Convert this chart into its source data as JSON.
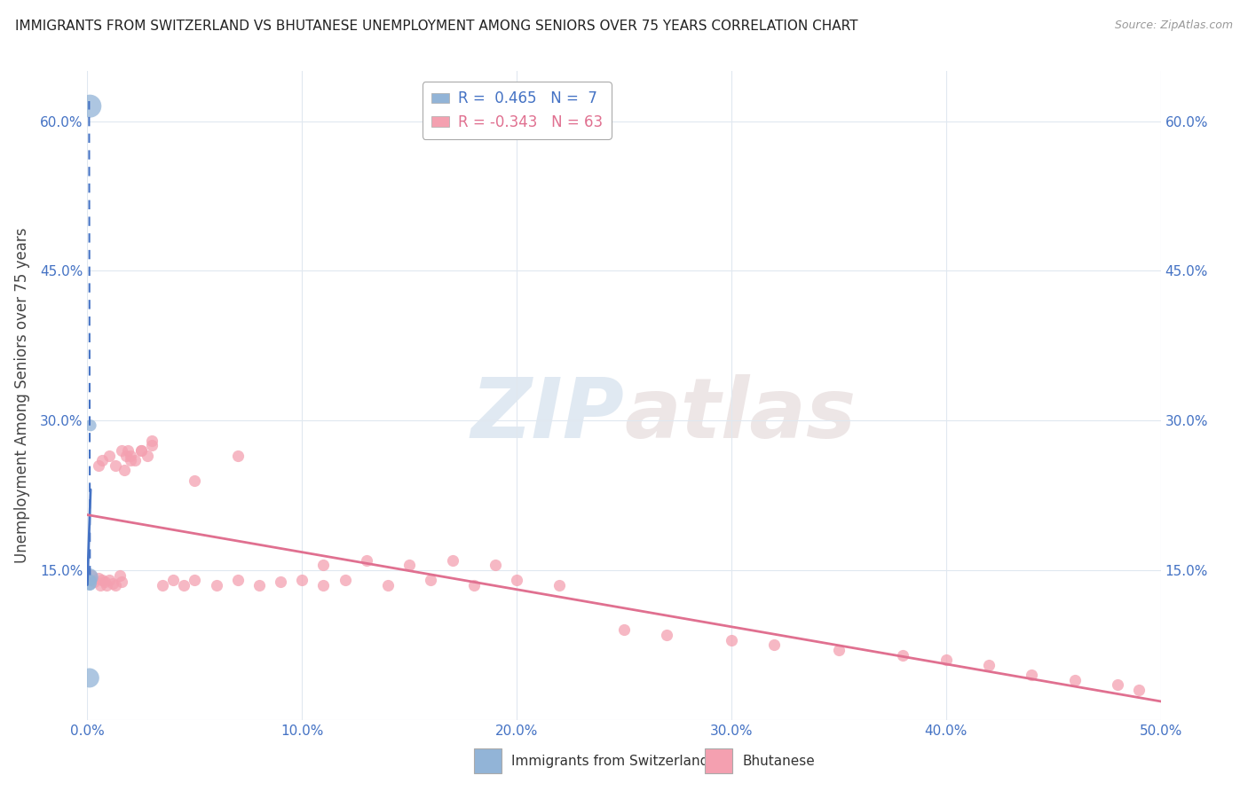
{
  "title": "IMMIGRANTS FROM SWITZERLAND VS BHUTANESE UNEMPLOYMENT AMONG SENIORS OVER 75 YEARS CORRELATION CHART",
  "source": "Source: ZipAtlas.com",
  "xlabel_left": "Immigrants from Switzerland",
  "xlabel_right": "Bhutanese",
  "ylabel": "Unemployment Among Seniors over 75 years",
  "xlim": [
    0.0,
    0.5
  ],
  "ylim": [
    0.0,
    0.65
  ],
  "xtick_vals": [
    0.0,
    0.1,
    0.2,
    0.3,
    0.4,
    0.5
  ],
  "ytick_vals": [
    0.0,
    0.15,
    0.3,
    0.45,
    0.6
  ],
  "xtick_labels": [
    "0.0%",
    "10.0%",
    "20.0%",
    "30.0%",
    "40.0%",
    "50.0%"
  ],
  "ytick_labels": [
    "",
    "15.0%",
    "30.0%",
    "45.0%",
    "60.0%"
  ],
  "legend_1_r": "0.465",
  "legend_1_n": "7",
  "legend_2_r": "-0.343",
  "legend_2_n": "63",
  "color_swiss": "#92b4d7",
  "color_bhutan": "#f4a0b0",
  "color_swiss_line": "#4472c4",
  "color_bhutan_line": "#e07090",
  "color_tick": "#4472c4",
  "color_grid": "#e0e8f0",
  "swiss_x": [
    0.0012,
    0.0015,
    0.001,
    0.001,
    0.0018,
    0.0013,
    0.001
  ],
  "swiss_y": [
    0.615,
    0.295,
    0.143,
    0.137,
    0.14,
    0.135,
    0.042
  ],
  "swiss_sizes": [
    350,
    90,
    200,
    140,
    80,
    80,
    250
  ],
  "bhutan_x": [
    0.002,
    0.003,
    0.005,
    0.006,
    0.007,
    0.008,
    0.009,
    0.01,
    0.012,
    0.013,
    0.015,
    0.016,
    0.017,
    0.018,
    0.019,
    0.02,
    0.022,
    0.025,
    0.028,
    0.03,
    0.005,
    0.007,
    0.01,
    0.013,
    0.016,
    0.02,
    0.025,
    0.03,
    0.035,
    0.04,
    0.045,
    0.05,
    0.06,
    0.07,
    0.08,
    0.09,
    0.1,
    0.11,
    0.12,
    0.14,
    0.16,
    0.18,
    0.2,
    0.22,
    0.05,
    0.07,
    0.11,
    0.13,
    0.15,
    0.17,
    0.19,
    0.25,
    0.27,
    0.3,
    0.32,
    0.35,
    0.38,
    0.4,
    0.42,
    0.44,
    0.46,
    0.48,
    0.49
  ],
  "bhutan_y": [
    0.145,
    0.138,
    0.142,
    0.135,
    0.14,
    0.138,
    0.135,
    0.14,
    0.137,
    0.135,
    0.145,
    0.138,
    0.25,
    0.265,
    0.27,
    0.265,
    0.26,
    0.27,
    0.265,
    0.275,
    0.255,
    0.26,
    0.265,
    0.255,
    0.27,
    0.26,
    0.27,
    0.28,
    0.135,
    0.14,
    0.135,
    0.14,
    0.135,
    0.14,
    0.135,
    0.138,
    0.14,
    0.135,
    0.14,
    0.135,
    0.14,
    0.135,
    0.14,
    0.135,
    0.24,
    0.265,
    0.155,
    0.16,
    0.155,
    0.16,
    0.155,
    0.09,
    0.085,
    0.08,
    0.075,
    0.07,
    0.065,
    0.06,
    0.055,
    0.045,
    0.04,
    0.035,
    0.03
  ]
}
